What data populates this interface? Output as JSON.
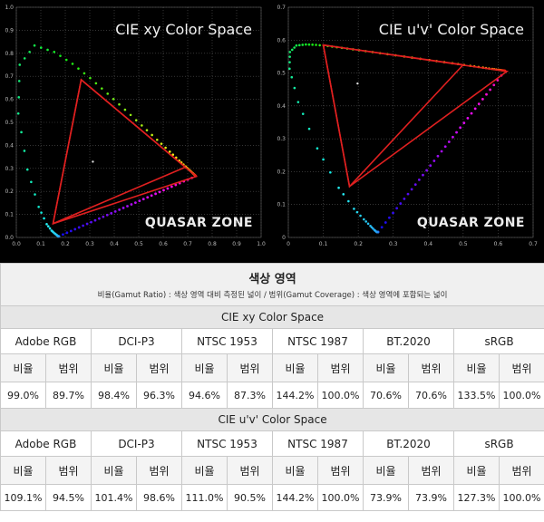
{
  "watermark": "QUASAR ZONE",
  "chart_data": [
    {
      "type": "scatter",
      "title": "CIE xy Color Space",
      "xlim": [
        0,
        1.0
      ],
      "ylim": [
        0,
        1.0
      ],
      "grid": true,
      "xticks": [
        "0.0",
        "0.1",
        "0.2",
        "0.3",
        "0.4",
        "0.5",
        "0.6",
        "0.7",
        "0.8",
        "0.9",
        "1.0"
      ],
      "yticks": [
        "0.0",
        "0.1",
        "0.2",
        "0.3",
        "0.4",
        "0.5",
        "0.6",
        "0.7",
        "0.8",
        "0.9",
        "1.0"
      ],
      "gamut_triangles": [
        {
          "color": "#e02020",
          "points": [
            [
              0.265,
              0.685
            ],
            [
              0.69,
              0.305
            ],
            [
              0.15,
              0.06
            ]
          ]
        },
        {
          "color": "#e02020",
          "points": [
            [
              0.265,
              0.685
            ],
            [
              0.735,
              0.265
            ],
            [
              0.15,
              0.06
            ]
          ]
        }
      ],
      "white_point": [
        0.3127,
        0.329
      ]
    },
    {
      "type": "scatter",
      "title": "CIE u'v' Color Space",
      "xlim": [
        0,
        0.7
      ],
      "ylim": [
        0,
        0.7
      ],
      "grid": true,
      "xticks": [
        "0",
        "0.1",
        "0.2",
        "0.3",
        "0.4",
        "0.5",
        "0.6",
        "0.7"
      ],
      "yticks": [
        "0",
        "0.1",
        "0.2",
        "0.3",
        "0.4",
        "0.5",
        "0.6",
        "0.7"
      ],
      "gamut_triangles": [
        {
          "color": "#e02020",
          "points": [
            [
              0.1,
              0.585
            ],
            [
              0.5,
              0.525
            ],
            [
              0.175,
              0.155
            ]
          ]
        },
        {
          "color": "#e02020",
          "points": [
            [
              0.1,
              0.585
            ],
            [
              0.625,
              0.505
            ],
            [
              0.175,
              0.155
            ]
          ]
        }
      ],
      "white_point": [
        0.198,
        0.468
      ]
    }
  ],
  "table": {
    "title": "색상 영역",
    "subtitle": "비율(Gamut Ratio) : 색상 영역 대비 측정된 넓이 / 범위(Gamut Coverage) : 색상 영역에 포함되는 넓이",
    "sub_labels": [
      "비율",
      "범위"
    ],
    "sections": [
      {
        "space": "CIE xy Color Space",
        "standards": [
          "Adobe RGB",
          "DCI-P3",
          "NTSC 1953",
          "NTSC 1987",
          "BT.2020",
          "sRGB"
        ],
        "values": [
          "99.0%",
          "89.7%",
          "98.4%",
          "96.3%",
          "94.6%",
          "87.3%",
          "144.2%",
          "100.0%",
          "70.6%",
          "70.6%",
          "133.5%",
          "100.0%"
        ]
      },
      {
        "space": "CIE u'v' Color Space",
        "standards": [
          "Adobe RGB",
          "DCI-P3",
          "NTSC 1953",
          "NTSC 1987",
          "BT.2020",
          "sRGB"
        ],
        "values": [
          "109.1%",
          "94.5%",
          "101.4%",
          "98.6%",
          "111.0%",
          "90.5%",
          "144.2%",
          "100.0%",
          "73.9%",
          "73.9%",
          "127.3%",
          "100.0%"
        ]
      }
    ]
  }
}
